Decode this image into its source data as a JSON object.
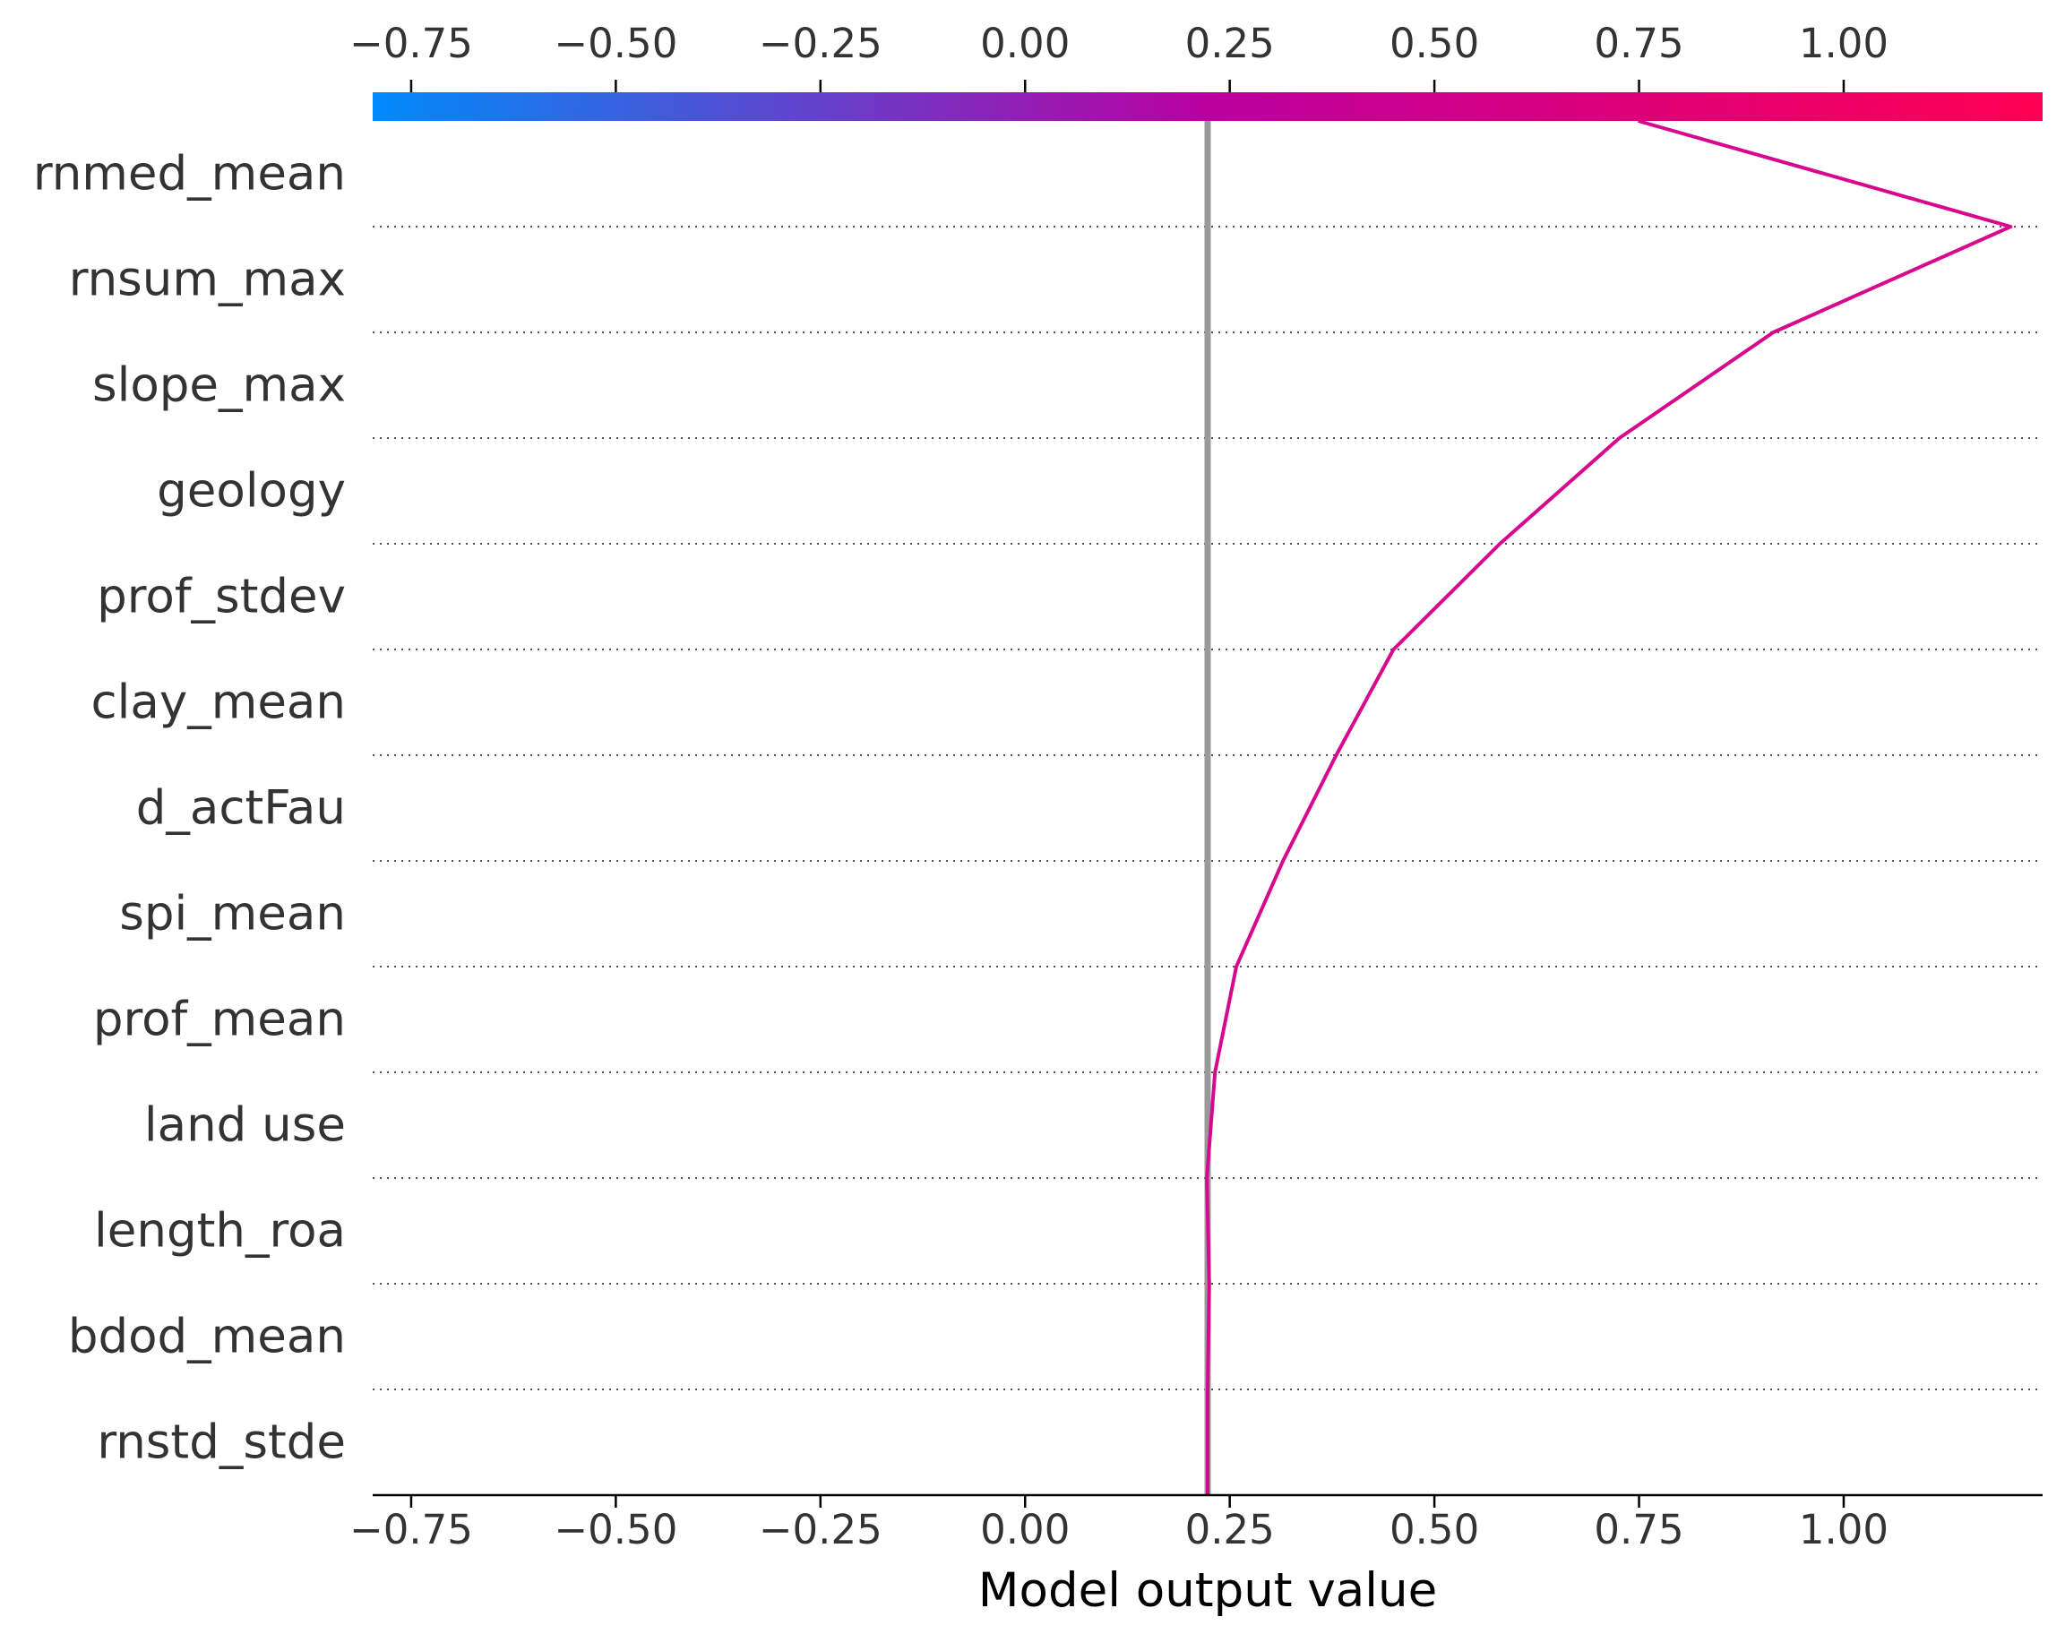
{
  "chart_data": {
    "type": "line",
    "xlabel": "Model output value",
    "xlim": [
      -0.797,
      1.243
    ],
    "x_ticks": [
      -0.75,
      -0.5,
      -0.25,
      0.0,
      0.25,
      0.5,
      0.75,
      1.0
    ],
    "x_tick_labels": [
      "−0.75",
      "−0.50",
      "−0.25",
      "0.00",
      "0.25",
      "0.50",
      "0.75",
      "1.00"
    ],
    "colorbar": {
      "from": "#008bfb",
      "mid": "#bb00a0",
      "to": "#ff0052"
    },
    "base_value": 0.223,
    "line_color": "#d8088e",
    "features": [
      "rnmed_mean",
      "rnsum_max",
      "slope_max",
      "geology",
      "prof_stdev",
      "clay_mean",
      "d_actFau",
      "spi_mean",
      "prof_mean",
      "land use",
      "length_roa",
      "bdod_mean",
      "rnstd_stde"
    ],
    "boundary_values": [
      0.223,
      0.223,
      0.225,
      0.222,
      0.232,
      0.258,
      0.315,
      0.38,
      0.45,
      0.58,
      0.726,
      0.914,
      1.204,
      0.749
    ]
  }
}
